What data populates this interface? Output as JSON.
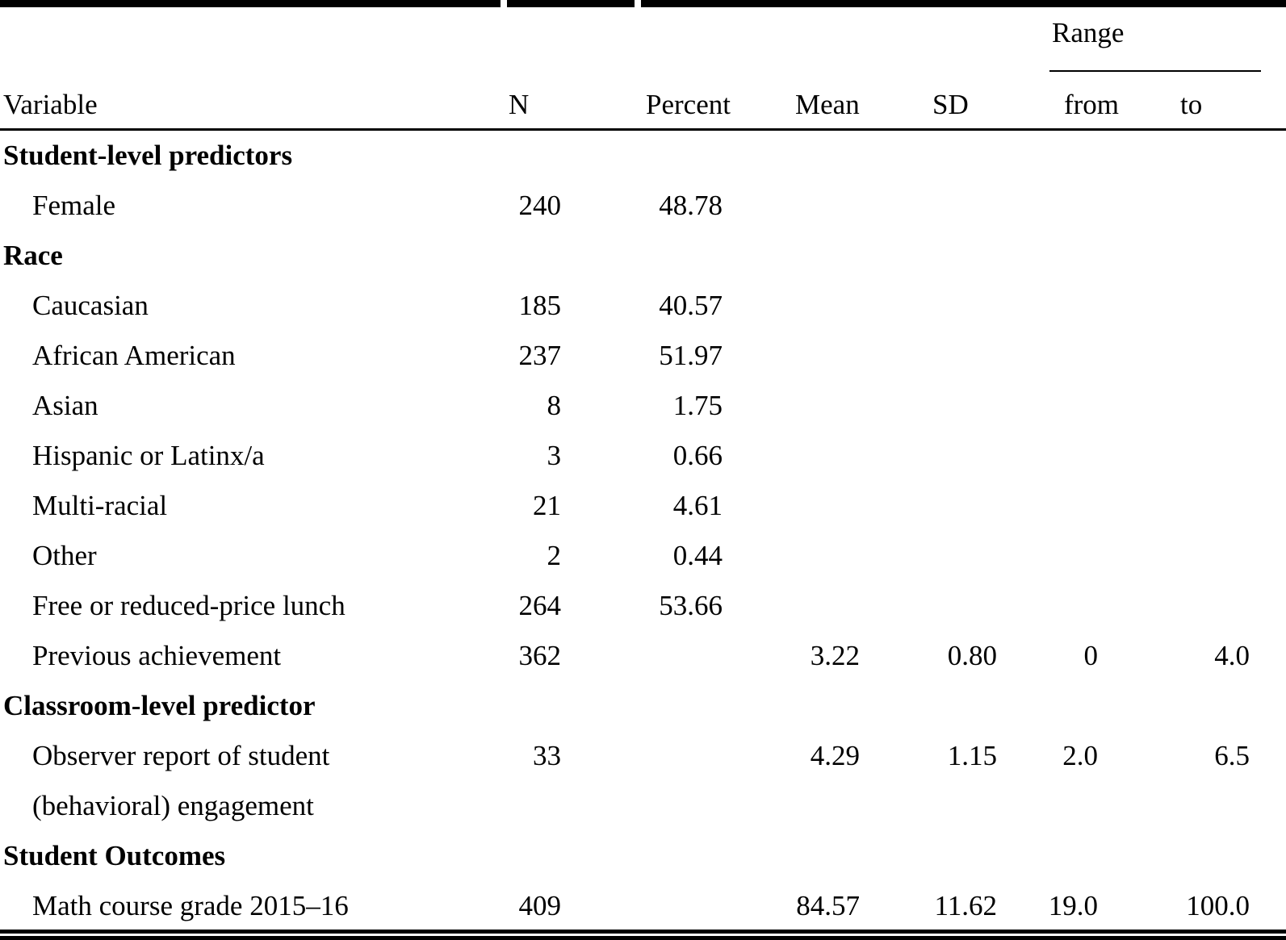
{
  "table": {
    "columns": {
      "variable": "Variable",
      "n": "N",
      "percent": "Percent",
      "mean": "Mean",
      "sd": "SD",
      "range": "Range",
      "from": "from",
      "to": "to"
    },
    "rows": [
      {
        "style": "section",
        "label": "Student-level predictors"
      },
      {
        "style": "item",
        "label": "Female",
        "n": "240",
        "percent": "48.78"
      },
      {
        "style": "section",
        "label": "Race"
      },
      {
        "style": "item",
        "label": "Caucasian",
        "n": "185",
        "percent": "40.57"
      },
      {
        "style": "item",
        "label": "African American",
        "n": "237",
        "percent": "51.97"
      },
      {
        "style": "item",
        "label": "Asian",
        "n": "8",
        "percent": "1.75"
      },
      {
        "style": "item",
        "label": "Hispanic or Latinx/a",
        "n": "3",
        "percent": "0.66"
      },
      {
        "style": "item",
        "label": "Multi-racial",
        "n": "21",
        "percent": "4.61"
      },
      {
        "style": "item",
        "label": "Other",
        "n": "2",
        "percent": "0.44"
      },
      {
        "style": "item",
        "label": "Free or reduced-price lunch",
        "n": "264",
        "percent": "53.66"
      },
      {
        "style": "item",
        "label": "Previous achievement",
        "n": "362",
        "mean": "3.22",
        "sd": "0.80",
        "from": "0",
        "to": "4.0"
      },
      {
        "style": "section",
        "label": "Classroom-level predictor"
      },
      {
        "style": "item",
        "label": "Observer report of student\n(behavioral) engagement",
        "n": "33",
        "mean": "4.29",
        "sd": "1.15",
        "from": "2.0",
        "to": "6.5"
      },
      {
        "style": "section",
        "label": "Student Outcomes"
      },
      {
        "style": "item",
        "label": "Math course grade 2015–16",
        "n": "409",
        "mean": "84.57",
        "sd": "11.62",
        "from": "19.0",
        "to": "100.0"
      }
    ]
  },
  "colors": {
    "background": "#ffffff",
    "text": "#000000",
    "rule": "#000000"
  }
}
